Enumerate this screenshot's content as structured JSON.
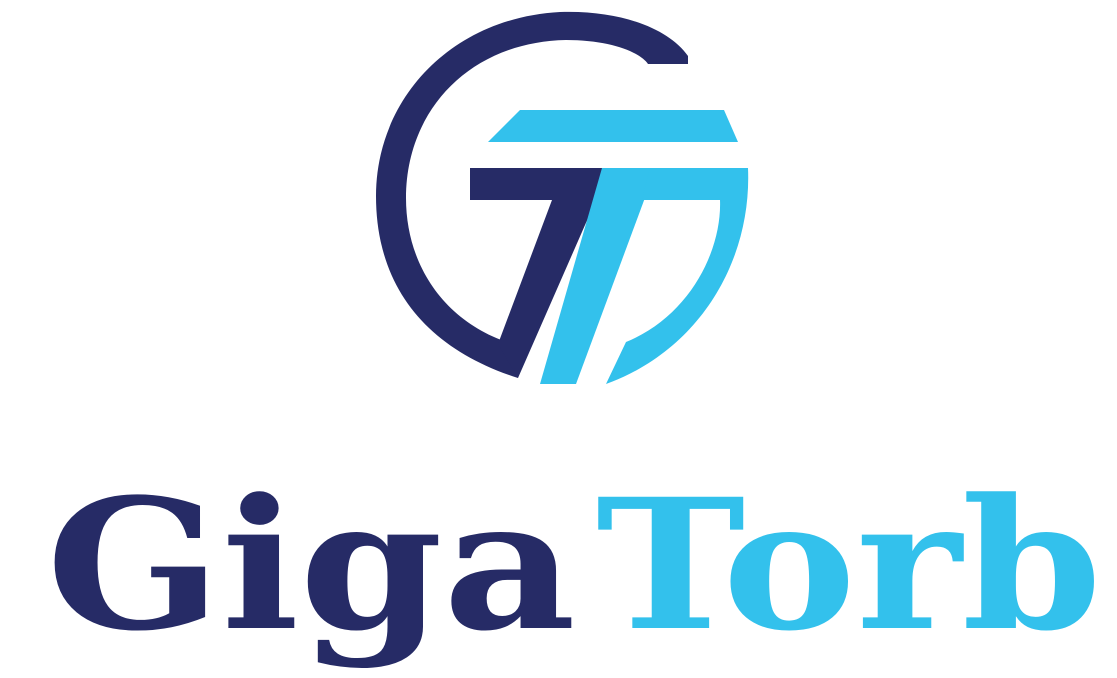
{
  "brand": {
    "name_part_1": "Giga",
    "name_part_2": "Torb"
  },
  "colors": {
    "navy": "#262b66",
    "sky": "#33c1ec",
    "background": "#ffffff"
  },
  "icons": {
    "emblem": "gt-monogram-circle-icon"
  }
}
